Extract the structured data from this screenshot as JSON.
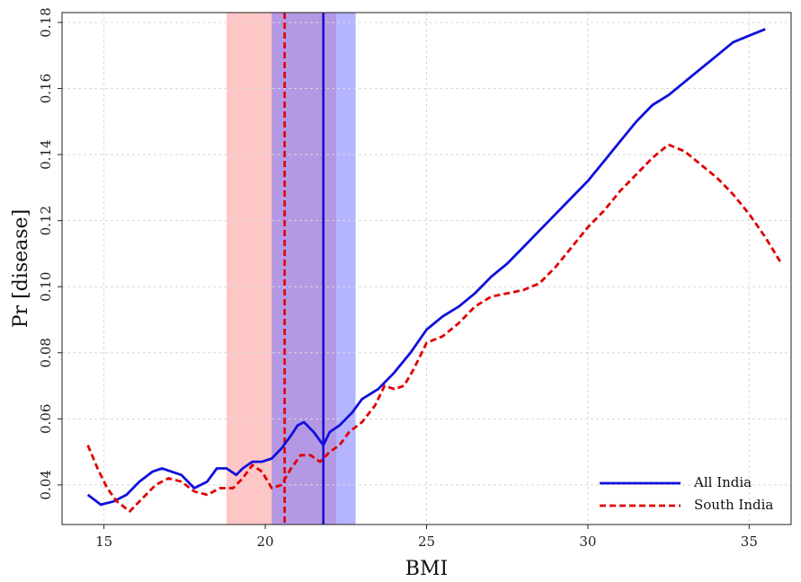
{
  "chart_data": {
    "type": "line",
    "xlabel": "BMI",
    "ylabel": "Pr [disease]",
    "xlim": [
      13.7,
      36.3
    ],
    "ylim": [
      0.028,
      0.183
    ],
    "xticks": [
      15,
      20,
      25,
      30,
      35
    ],
    "yticks": [
      0.04,
      0.06,
      0.08,
      0.1,
      0.12,
      0.14,
      0.16,
      0.18
    ],
    "ytick_labels": [
      "0.04",
      "0.06",
      "0.08",
      "0.10",
      "0.12",
      "0.14",
      "0.16",
      "0.18"
    ],
    "grid": true,
    "legend_position": "bottom-right",
    "bands": [
      {
        "x_start": 18.8,
        "x_end": 22.2,
        "color": "#ff8080",
        "opacity": 0.45
      },
      {
        "x_start": 20.2,
        "x_end": 22.8,
        "color": "#6a6aff",
        "opacity": 0.5
      }
    ],
    "vlines": [
      {
        "x": 20.6,
        "color": "#e00000",
        "style": "dashed"
      },
      {
        "x": 21.8,
        "color": "#1a10cc",
        "style": "solid"
      }
    ],
    "series": [
      {
        "name": "All India",
        "color": "#1010dd",
        "style": "solid",
        "x": [
          14.5,
          14.9,
          15.3,
          15.7,
          16.1,
          16.5,
          16.8,
          17.1,
          17.4,
          17.8,
          18.2,
          18.5,
          18.8,
          19.1,
          19.3,
          19.6,
          19.9,
          20.2,
          20.5,
          20.8,
          21.0,
          21.2,
          21.5,
          21.8,
          22.0,
          22.3,
          22.7,
          23.0,
          23.5,
          24.0,
          24.5,
          25.0,
          25.5,
          26.0,
          26.5,
          27.0,
          27.5,
          28.0,
          28.5,
          29.0,
          29.5,
          30.0,
          30.5,
          31.0,
          31.5,
          32.0,
          32.5,
          33.0,
          33.5,
          34.0,
          34.5,
          35.0,
          35.5
        ],
        "values": [
          0.037,
          0.034,
          0.035,
          0.037,
          0.041,
          0.044,
          0.045,
          0.044,
          0.043,
          0.039,
          0.041,
          0.045,
          0.045,
          0.043,
          0.045,
          0.047,
          0.047,
          0.048,
          0.051,
          0.055,
          0.058,
          0.059,
          0.056,
          0.052,
          0.056,
          0.058,
          0.062,
          0.066,
          0.069,
          0.074,
          0.08,
          0.087,
          0.091,
          0.094,
          0.098,
          0.103,
          0.107,
          0.112,
          0.117,
          0.122,
          0.127,
          0.132,
          0.138,
          0.144,
          0.15,
          0.155,
          0.158,
          0.162,
          0.166,
          0.17,
          0.174,
          0.176,
          0.178
        ]
      },
      {
        "name": "South India",
        "color": "#e00000",
        "style": "dashed",
        "x": [
          14.5,
          14.8,
          15.1,
          15.4,
          15.8,
          16.2,
          16.6,
          17.0,
          17.4,
          17.8,
          18.2,
          18.6,
          19.0,
          19.3,
          19.6,
          19.9,
          20.2,
          20.5,
          20.8,
          21.1,
          21.4,
          21.7,
          22.0,
          22.3,
          22.6,
          23.0,
          23.4,
          23.7,
          24.0,
          24.3,
          24.6,
          25.0,
          25.5,
          26.0,
          26.5,
          27.0,
          27.5,
          28.0,
          28.5,
          29.0,
          29.5,
          30.0,
          30.5,
          31.0,
          31.5,
          32.0,
          32.5,
          33.0,
          33.5,
          34.0,
          34.5,
          35.0,
          35.5,
          36.0
        ],
        "values": [
          0.052,
          0.045,
          0.039,
          0.035,
          0.032,
          0.036,
          0.04,
          0.042,
          0.041,
          0.038,
          0.037,
          0.039,
          0.039,
          0.042,
          0.046,
          0.044,
          0.039,
          0.04,
          0.045,
          0.049,
          0.049,
          0.047,
          0.05,
          0.052,
          0.056,
          0.059,
          0.064,
          0.07,
          0.069,
          0.07,
          0.075,
          0.083,
          0.085,
          0.089,
          0.094,
          0.097,
          0.098,
          0.099,
          0.101,
          0.106,
          0.112,
          0.118,
          0.123,
          0.129,
          0.134,
          0.139,
          0.143,
          0.141,
          0.137,
          0.133,
          0.128,
          0.122,
          0.115,
          0.107
        ]
      }
    ]
  }
}
